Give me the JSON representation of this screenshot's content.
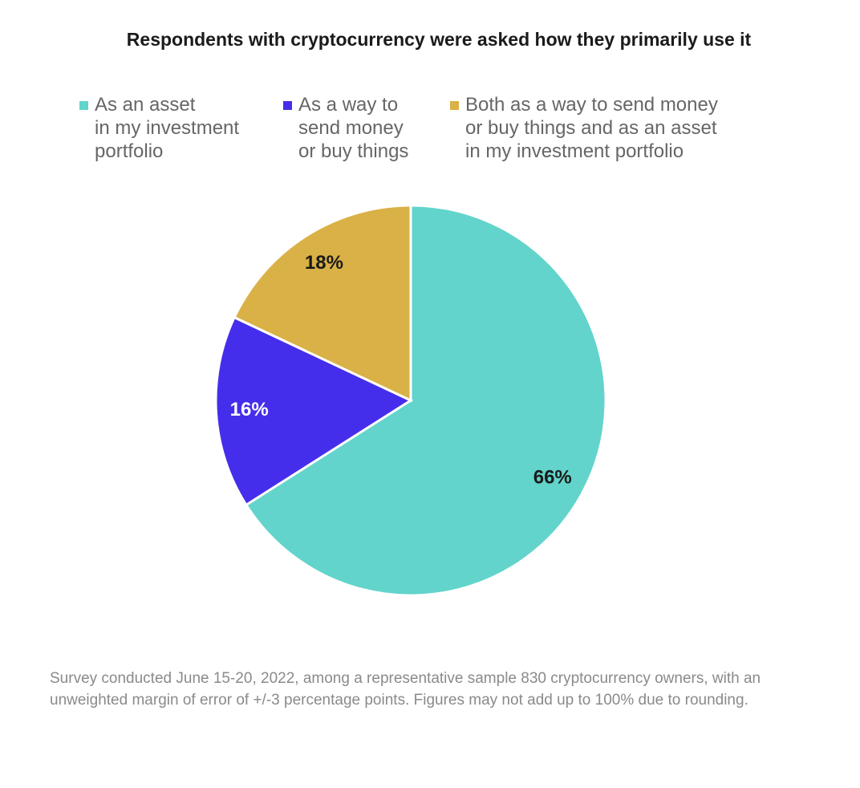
{
  "chart_data": {
    "type": "pie",
    "title": "Respondents with cryptocurrency were asked how they primarily use it",
    "categories": [
      "As an asset\nin my investment\nportfolio",
      "As a way to\nsend money\nor buy things",
      "Both as a way to send money\nor buy things and as an asset\nin my investment portfolio"
    ],
    "values": [
      66,
      16,
      18
    ],
    "value_labels": [
      "66%",
      "16%",
      "18%"
    ],
    "colors": [
      "#62d4cb",
      "#452eeb",
      "#d9b146"
    ],
    "label_colors": [
      "#1a1a1a",
      "#ffffff",
      "#1a1a1a"
    ],
    "note": "Survey conducted June 15-20, 2022, among a representative sample 830 cryptocurrency owners, with an unweighted margin of error of +/-3 percentage points. Figures may not add up to 100% due to rounding."
  }
}
